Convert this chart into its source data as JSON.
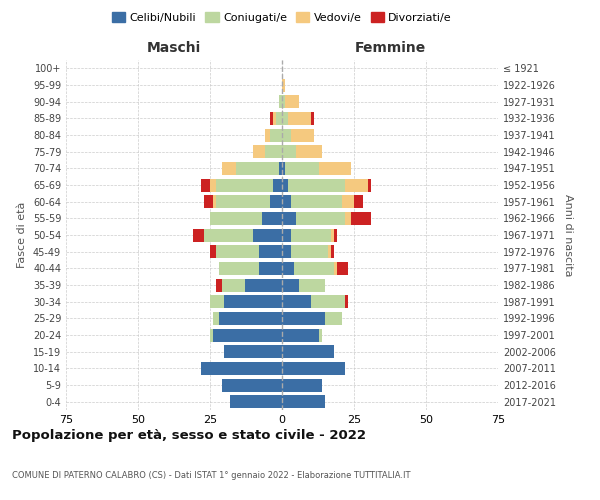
{
  "age_groups": [
    "0-4",
    "5-9",
    "10-14",
    "15-19",
    "20-24",
    "25-29",
    "30-34",
    "35-39",
    "40-44",
    "45-49",
    "50-54",
    "55-59",
    "60-64",
    "65-69",
    "70-74",
    "75-79",
    "80-84",
    "85-89",
    "90-94",
    "95-99",
    "100+"
  ],
  "birth_years": [
    "2017-2021",
    "2012-2016",
    "2007-2011",
    "2002-2006",
    "1997-2001",
    "1992-1996",
    "1987-1991",
    "1982-1986",
    "1977-1981",
    "1972-1976",
    "1967-1971",
    "1962-1966",
    "1957-1961",
    "1952-1956",
    "1947-1951",
    "1942-1946",
    "1937-1941",
    "1932-1936",
    "1927-1931",
    "1922-1926",
    "≤ 1921"
  ],
  "maschi": {
    "celibi": [
      18,
      21,
      28,
      20,
      24,
      22,
      20,
      13,
      8,
      8,
      10,
      7,
      4,
      3,
      1,
      0,
      0,
      0,
      0,
      0,
      0
    ],
    "coniugati": [
      0,
      0,
      0,
      0,
      1,
      2,
      5,
      8,
      14,
      15,
      17,
      18,
      19,
      20,
      15,
      6,
      4,
      2,
      1,
      0,
      0
    ],
    "vedovi": [
      0,
      0,
      0,
      0,
      0,
      0,
      0,
      0,
      0,
      0,
      0,
      0,
      1,
      2,
      5,
      4,
      2,
      1,
      0,
      0,
      0
    ],
    "divorziati": [
      0,
      0,
      0,
      0,
      0,
      0,
      0,
      2,
      0,
      2,
      4,
      0,
      3,
      3,
      0,
      0,
      0,
      1,
      0,
      0,
      0
    ]
  },
  "femmine": {
    "nubili": [
      15,
      14,
      22,
      18,
      13,
      15,
      10,
      6,
      4,
      3,
      3,
      5,
      3,
      2,
      1,
      0,
      0,
      0,
      0,
      0,
      0
    ],
    "coniugate": [
      0,
      0,
      0,
      0,
      1,
      6,
      12,
      9,
      14,
      13,
      14,
      17,
      18,
      20,
      12,
      5,
      3,
      2,
      1,
      0,
      0
    ],
    "vedove": [
      0,
      0,
      0,
      0,
      0,
      0,
      0,
      0,
      1,
      1,
      1,
      2,
      4,
      8,
      11,
      9,
      8,
      8,
      5,
      1,
      0
    ],
    "divorziate": [
      0,
      0,
      0,
      0,
      0,
      0,
      1,
      0,
      4,
      1,
      1,
      7,
      3,
      1,
      0,
      0,
      0,
      1,
      0,
      0,
      0
    ]
  },
  "colors": {
    "celibi": "#3B6EA5",
    "coniugati": "#BDD7A0",
    "vedovi": "#F5C97F",
    "divorziati": "#CC2222"
  },
  "xlim": 75,
  "title": "Popolazione per età, sesso e stato civile - 2022",
  "subtitle": "COMUNE DI PATERNO CALABRO (CS) - Dati ISTAT 1° gennaio 2022 - Elaborazione TUTTITALIA.IT",
  "ylabel_left": "Fasce di età",
  "ylabel_right": "Anni di nascita",
  "xlabel_left": "Maschi",
  "xlabel_right": "Femmine"
}
